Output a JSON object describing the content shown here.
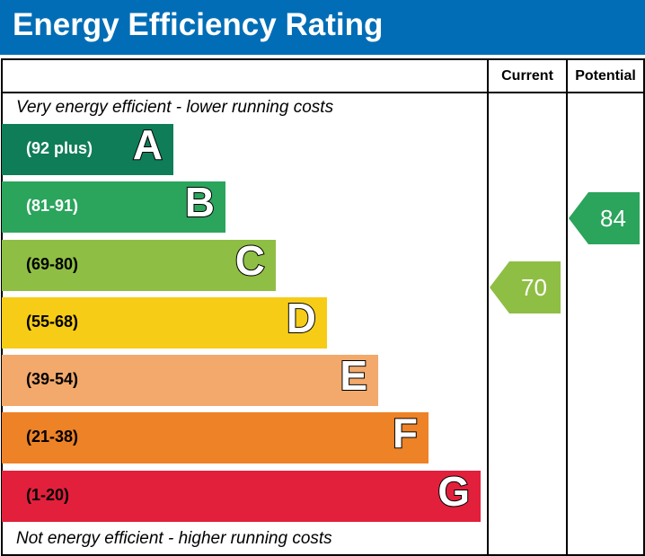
{
  "header": {
    "title": "Energy Efficiency Rating"
  },
  "columns": {
    "current": "Current",
    "potential": "Potential"
  },
  "notes": {
    "top": "Very energy efficient - lower running costs",
    "bottom": "Not energy efficient - higher running costs"
  },
  "chart_data": {
    "type": "bar",
    "bands": [
      {
        "letter": "A",
        "range": "(92 plus)",
        "color": "#0f7d58",
        "text_color": "#ffffff"
      },
      {
        "letter": "B",
        "range": "(81-91)",
        "color": "#2ba45c",
        "text_color": "#ffffff"
      },
      {
        "letter": "C",
        "range": "(69-80)",
        "color": "#8fbe44",
        "text_color": "#000000"
      },
      {
        "letter": "D",
        "range": "(55-68)",
        "color": "#f6cc16",
        "text_color": "#000000"
      },
      {
        "letter": "E",
        "range": "(39-54)",
        "color": "#f2a96b",
        "text_color": "#000000"
      },
      {
        "letter": "F",
        "range": "(21-38)",
        "color": "#ed8227",
        "text_color": "#000000"
      },
      {
        "letter": "G",
        "range": "(1-20)",
        "color": "#e2203c",
        "text_color": "#000000"
      }
    ],
    "current": {
      "value": "70",
      "band": "C",
      "color": "#8fbe44"
    },
    "potential": {
      "value": "84",
      "band": "B",
      "color": "#2ba45c"
    }
  }
}
